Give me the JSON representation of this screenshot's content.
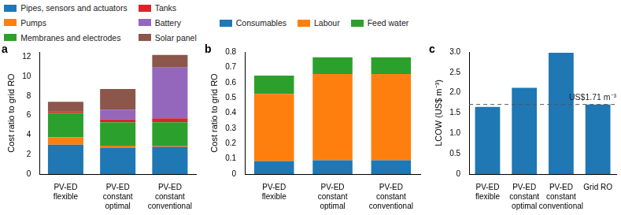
{
  "chart_data": [
    {
      "type": "bar",
      "title": "a",
      "stacked": true,
      "legend": "top",
      "grid": false,
      "y_label": "Cost ratio to grid RO",
      "categories": [
        [
          "PV-ED",
          "flexible"
        ],
        [
          "PV-ED",
          "constant",
          "optimal"
        ],
        [
          "PV-ED",
          "constant",
          "conventional"
        ]
      ],
      "series": [
        {
          "name": "Pipes, sensors and actuators",
          "color": "#1f77b4",
          "values": [
            3.0,
            2.7,
            2.8
          ]
        },
        {
          "name": "Pumps",
          "color": "#ff7f0e",
          "values": [
            0.75,
            0.2,
            0.1
          ]
        },
        {
          "name": "Membranes and electrodes",
          "color": "#2ca02c",
          "values": [
            2.5,
            2.4,
            2.4
          ]
        },
        {
          "name": "Tanks",
          "color": "#d62728",
          "values": [
            0.15,
            0.3,
            0.4
          ]
        },
        {
          "name": "Battery",
          "color": "#9467bd",
          "values": [
            0,
            1.0,
            5.2
          ]
        },
        {
          "name": "Solar panel",
          "color": "#8c564b",
          "values": [
            1.0,
            2.1,
            1.3
          ]
        }
      ],
      "ylim": [
        0,
        12.5
      ],
      "yticks": [
        0,
        2,
        4,
        6,
        8,
        10,
        12
      ]
    },
    {
      "type": "bar",
      "title": "b",
      "stacked": true,
      "legend": "top",
      "grid": false,
      "y_label": "Cost ratio to grid RO",
      "categories": [
        [
          "PV-ED",
          "flexible"
        ],
        [
          "PV-ED",
          "constant",
          "optimal"
        ],
        [
          "PV-ED",
          "constant",
          "conventional"
        ]
      ],
      "series": [
        {
          "name": "Consumables",
          "color": "#1f77b4",
          "values": [
            0.085,
            0.09,
            0.09
          ]
        },
        {
          "name": "Labour",
          "color": "#ff7f0e",
          "values": [
            0.44,
            0.565,
            0.565
          ]
        },
        {
          "name": "Feed water",
          "color": "#2ca02c",
          "values": [
            0.12,
            0.11,
            0.11
          ]
        }
      ],
      "ylim": [
        0,
        0.8
      ],
      "yticks": [
        0,
        0.1,
        0.2,
        0.3,
        0.4,
        0.5,
        0.6,
        0.7,
        0.8
      ]
    },
    {
      "type": "bar",
      "title": "c",
      "grid": false,
      "y_label": "LCOW (US$ m⁻³)",
      "categories": [
        [
          "PV-ED",
          "flexible"
        ],
        [
          "PV-ED",
          "constant",
          "optimal"
        ],
        [
          "PV-ED",
          "constant",
          "conventional"
        ],
        [
          "Grid RO"
        ]
      ],
      "values": [
        1.65,
        2.12,
        2.98,
        1.71
      ],
      "color": "#1f77b4",
      "ylim": [
        0,
        3.0
      ],
      "yticks": [
        0,
        0.5,
        {
          "value": 1,
          "label": "1.0"
        },
        1.5,
        {
          "value": 2,
          "label": "2.0"
        },
        2.5,
        {
          "value": 3,
          "label": "3.0"
        }
      ],
      "annotations": [
        {
          "text": "US$1.71 m⁻³",
          "y": 1.71,
          "line_style": "dashed"
        }
      ]
    }
  ]
}
